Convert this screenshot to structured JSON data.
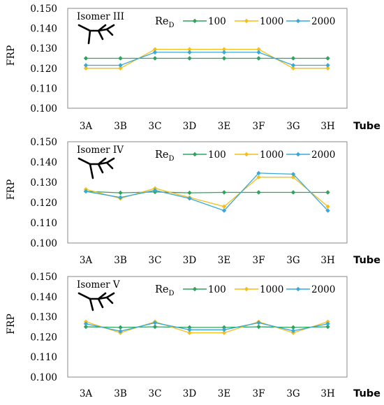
{
  "chart_data": [
    {
      "type": "line",
      "title": "Isomer III",
      "ylabel": "FRP",
      "xlabel": "Tube",
      "categories": [
        "3A",
        "3B",
        "3C",
        "3D",
        "3E",
        "3F",
        "3G",
        "3H"
      ],
      "ylim": [
        0.1,
        0.15
      ],
      "yticks": [
        "0.100",
        "0.110",
        "0.120",
        "0.130",
        "0.140",
        "0.150"
      ],
      "legend_title": "Re",
      "legend_subscript": "D",
      "series": [
        {
          "name": "100",
          "color": "#2fa35c",
          "values": [
            0.125,
            0.125,
            0.125,
            0.125,
            0.125,
            0.125,
            0.125,
            0.125
          ]
        },
        {
          "name": "1000",
          "color": "#f2bf1b",
          "values": [
            0.12,
            0.12,
            0.1295,
            0.1295,
            0.1295,
            0.1295,
            0.12,
            0.12
          ]
        },
        {
          "name": "2000",
          "color": "#38a8d8",
          "values": [
            0.1215,
            0.1215,
            0.128,
            0.128,
            0.128,
            0.128,
            0.1215,
            0.1215
          ]
        }
      ]
    },
    {
      "type": "line",
      "title": "Isomer IV",
      "ylabel": "FRP",
      "xlabel": "Tube",
      "categories": [
        "3A",
        "3B",
        "3C",
        "3D",
        "3E",
        "3F",
        "3G",
        "3H"
      ],
      "ylim": [
        0.1,
        0.15
      ],
      "yticks": [
        "0.100",
        "0.110",
        "0.120",
        "0.130",
        "0.140",
        "0.150"
      ],
      "legend_title": "Re",
      "legend_subscript": "D",
      "series": [
        {
          "name": "100",
          "color": "#2fa35c",
          "values": [
            0.1255,
            0.1248,
            0.1252,
            0.1248,
            0.125,
            0.125,
            0.125,
            0.125
          ]
        },
        {
          "name": "1000",
          "color": "#f2bf1b",
          "values": [
            0.1265,
            0.122,
            0.127,
            0.1225,
            0.118,
            0.1325,
            0.1325,
            0.118
          ]
        },
        {
          "name": "2000",
          "color": "#38a8d8",
          "values": [
            0.1255,
            0.1225,
            0.126,
            0.122,
            0.116,
            0.1345,
            0.134,
            0.116
          ]
        }
      ]
    },
    {
      "type": "line",
      "title": "Isomer V",
      "ylabel": "FRP",
      "xlabel": "Tube",
      "categories": [
        "3A",
        "3B",
        "3C",
        "3D",
        "3E",
        "3F",
        "3G",
        "3H"
      ],
      "ylim": [
        0.1,
        0.15
      ],
      "yticks": [
        "0.100",
        "0.110",
        "0.120",
        "0.130",
        "0.140",
        "0.150"
      ],
      "legend_title": "Re",
      "legend_subscript": "D",
      "series": [
        {
          "name": "100",
          "color": "#2fa35c",
          "values": [
            0.125,
            0.1247,
            0.125,
            0.1247,
            0.1247,
            0.125,
            0.1247,
            0.125
          ]
        },
        {
          "name": "1000",
          "color": "#f2bf1b",
          "values": [
            0.1275,
            0.122,
            0.1275,
            0.122,
            0.122,
            0.1275,
            0.122,
            0.1275
          ]
        },
        {
          "name": "2000",
          "color": "#38a8d8",
          "values": [
            0.1265,
            0.1228,
            0.127,
            0.1235,
            0.1235,
            0.127,
            0.123,
            0.1265
          ]
        }
      ]
    }
  ]
}
